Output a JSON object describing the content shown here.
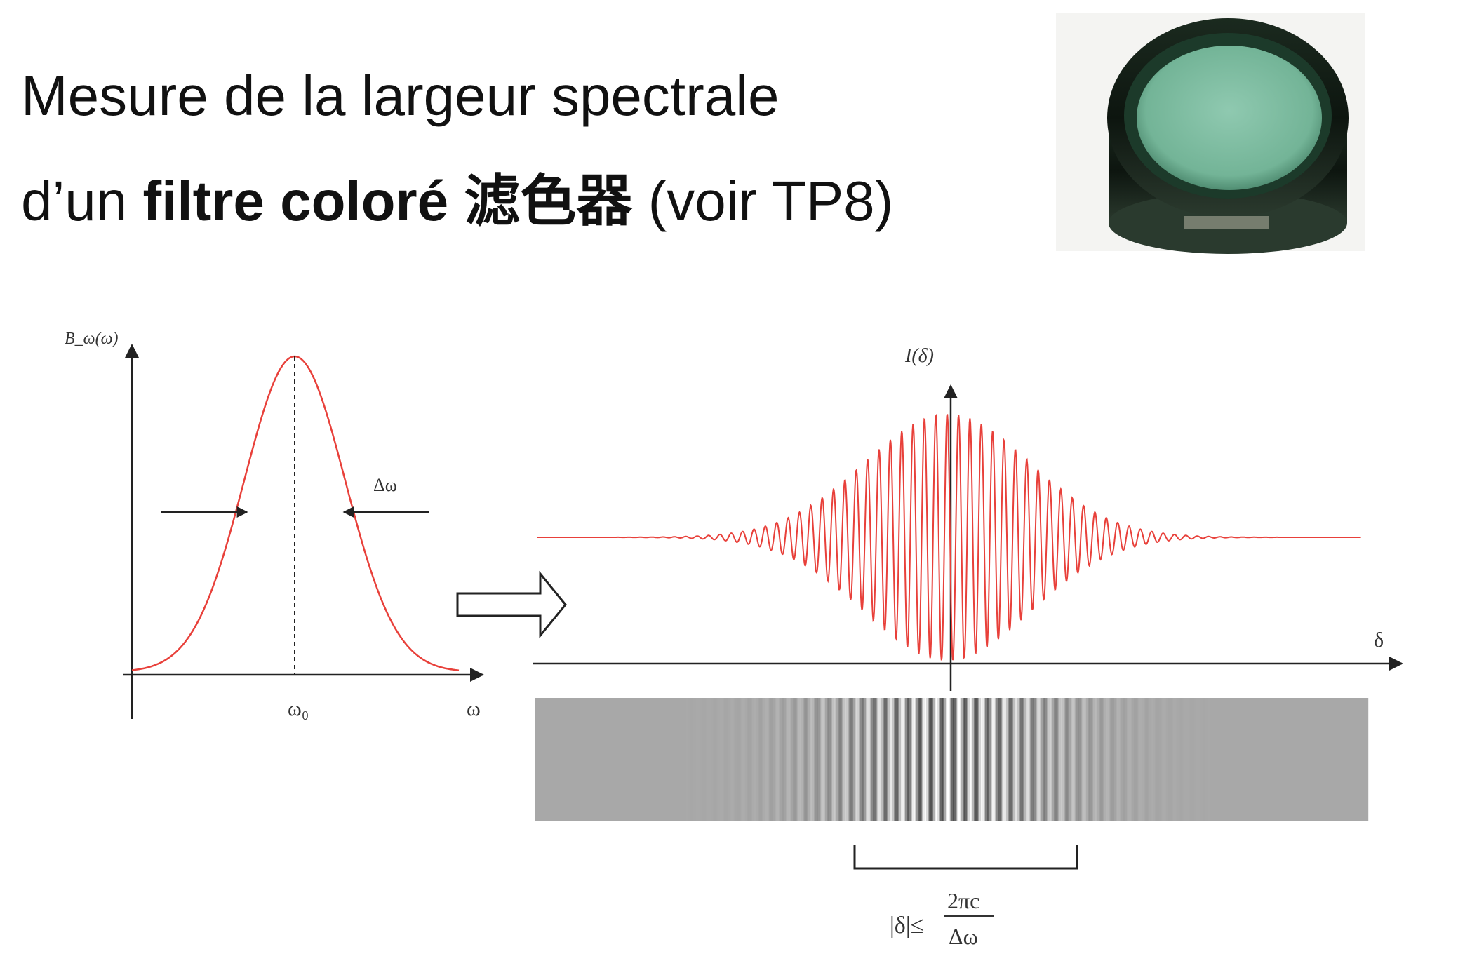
{
  "slide": {
    "title_line1": "Mesure de la largeur spectrale",
    "title_line2_prefix": "d’un ",
    "title_line2_bold": "filtre coloré",
    "title_line2_cjk": " 滤色器",
    "title_line2_suffix": " (voir TP8)"
  },
  "photo": {
    "description_icon": "color-filter-photo"
  },
  "spectrum_plot": {
    "ylabel": "B_ω(ω)",
    "delta_label": "Δω",
    "center_tick": "ω₀",
    "xlabel": "ω"
  },
  "interferogram_plot": {
    "ylabel": "I(δ)",
    "xlabel": "δ",
    "bracket_label_left": "|δ|≤",
    "bracket_num": "2πc",
    "bracket_den": "Δω"
  },
  "colors": {
    "curve": "#e8403a",
    "axis": "#222222",
    "fringe_gray": "#a8a8a8"
  }
}
